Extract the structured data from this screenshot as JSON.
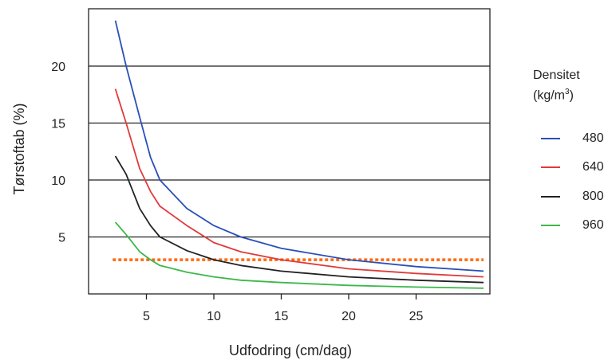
{
  "chart_data": {
    "type": "line",
    "xlabel": "Udfodring (cm/dag)",
    "ylabel": "Tørstoftab (%)",
    "xlim": [
      0,
      30
    ],
    "ylim": [
      0,
      25
    ],
    "x_ticks": [
      5,
      10,
      15,
      20,
      25
    ],
    "y_ticks": [
      5,
      10,
      15,
      20
    ],
    "grid": "horizontal",
    "legend": {
      "title_line1": "Densitet",
      "title_unit_prefix": "(kg/m",
      "title_unit_sup": "3",
      "title_unit_suffix": ")",
      "placement": "right"
    },
    "series": [
      {
        "name": "480",
        "color": "#2b4fb8",
        "points": [
          [
            2.7,
            24.0
          ],
          [
            3.5,
            20.0
          ],
          [
            4.5,
            15.5
          ],
          [
            5.3,
            12.0
          ],
          [
            6,
            10.0
          ],
          [
            8,
            7.5
          ],
          [
            10,
            6.0
          ],
          [
            12,
            5.0
          ],
          [
            15,
            4.0
          ],
          [
            20,
            3.0
          ],
          [
            25,
            2.4
          ],
          [
            30,
            2.0
          ]
        ]
      },
      {
        "name": "640",
        "color": "#e03a3a",
        "points": [
          [
            2.7,
            18.0
          ],
          [
            3.5,
            15.0
          ],
          [
            4.5,
            11.0
          ],
          [
            5.3,
            9.0
          ],
          [
            6,
            7.7
          ],
          [
            8,
            6.0
          ],
          [
            10,
            4.5
          ],
          [
            12,
            3.7
          ],
          [
            15,
            3.0
          ],
          [
            20,
            2.2
          ],
          [
            25,
            1.8
          ],
          [
            30,
            1.5
          ]
        ]
      },
      {
        "name": "800",
        "color": "#222222",
        "points": [
          [
            2.7,
            12.1
          ],
          [
            3.5,
            10.5
          ],
          [
            4.5,
            7.5
          ],
          [
            5.3,
            6.0
          ],
          [
            6,
            5.0
          ],
          [
            8,
            3.8
          ],
          [
            10,
            3.0
          ],
          [
            12,
            2.5
          ],
          [
            15,
            2.0
          ],
          [
            20,
            1.5
          ],
          [
            25,
            1.2
          ],
          [
            30,
            1.0
          ]
        ]
      },
      {
        "name": "960",
        "color": "#3cb84a",
        "points": [
          [
            2.7,
            6.3
          ],
          [
            3.5,
            5.2
          ],
          [
            4.5,
            3.7
          ],
          [
            5.3,
            3.0
          ],
          [
            6,
            2.5
          ],
          [
            8,
            1.9
          ],
          [
            10,
            1.5
          ],
          [
            12,
            1.2
          ],
          [
            15,
            1.0
          ],
          [
            20,
            0.75
          ],
          [
            25,
            0.6
          ],
          [
            30,
            0.5
          ]
        ]
      }
    ],
    "reference_line": {
      "y": 3,
      "x_range": [
        2.5,
        30
      ],
      "color": "#ff6a13",
      "style": "dotted"
    }
  }
}
